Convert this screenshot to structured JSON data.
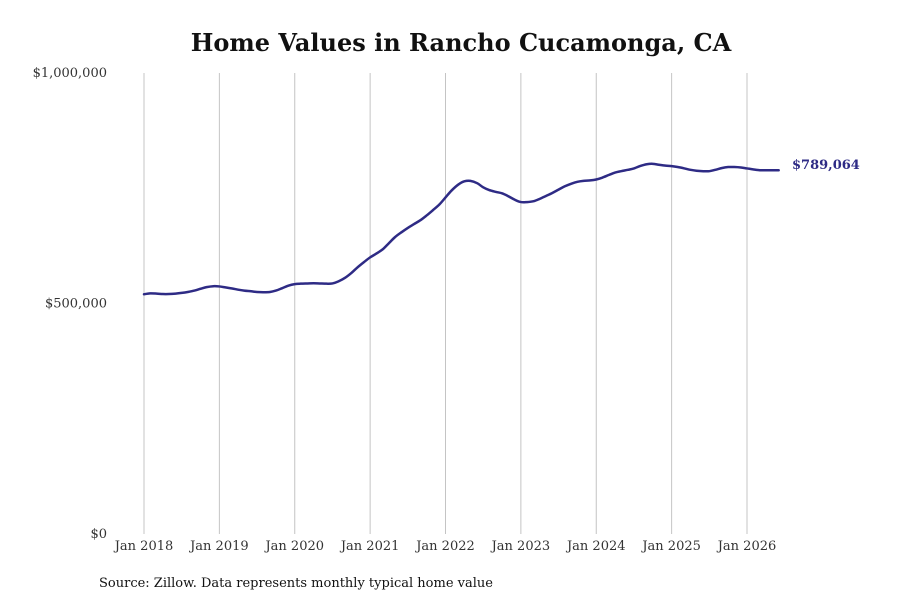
{
  "chart_data": {
    "type": "line",
    "title": "Home Values in Rancho Cucamonga, CA",
    "source": "Source: Zillow. Data represents monthly typical home value",
    "x_unit": "year",
    "x_range": [
      2017.9,
      2026.75
    ],
    "ylim": [
      0,
      1000000
    ],
    "y_ticks": [
      {
        "value": 0,
        "label": "$0"
      },
      {
        "value": 500000,
        "label": "$500,000"
      },
      {
        "value": 1000000,
        "label": "$1,000,000"
      }
    ],
    "x_ticks": [
      {
        "value": 2018,
        "label": "Jan 2018"
      },
      {
        "value": 2019,
        "label": "Jan 2019"
      },
      {
        "value": 2020,
        "label": "Jan 2020"
      },
      {
        "value": 2021,
        "label": "Jan 2021"
      },
      {
        "value": 2022,
        "label": "Jan 2022"
      },
      {
        "value": 2023,
        "label": "Jan 2023"
      },
      {
        "value": 2024,
        "label": "Jan 2024"
      },
      {
        "value": 2025,
        "label": "Jan 2025"
      },
      {
        "value": 2026,
        "label": "Jan 2026"
      }
    ],
    "grid": {
      "vertical": true,
      "horizontal": false
    },
    "color": "#2e2b85",
    "end_label": "$789,064",
    "series": [
      {
        "color": "#2e2b85",
        "x": [
          2018.0,
          2018.08,
          2018.17,
          2018.25,
          2018.33,
          2018.42,
          2018.5,
          2018.58,
          2018.67,
          2018.75,
          2018.83,
          2018.92,
          2019.0,
          2019.08,
          2019.17,
          2019.25,
          2019.33,
          2019.42,
          2019.5,
          2019.58,
          2019.67,
          2019.75,
          2019.83,
          2019.92,
          2020.0,
          2020.08,
          2020.17,
          2020.25,
          2020.33,
          2020.42,
          2020.5,
          2020.58,
          2020.67,
          2020.75,
          2020.83,
          2020.92,
          2021.0,
          2021.08,
          2021.17,
          2021.25,
          2021.33,
          2021.42,
          2021.5,
          2021.58,
          2021.67,
          2021.75,
          2021.83,
          2021.92,
          2022.0,
          2022.08,
          2022.17,
          2022.25,
          2022.33,
          2022.42,
          2022.5,
          2022.58,
          2022.67,
          2022.75,
          2022.83,
          2022.92,
          2023.0,
          2023.08,
          2023.17,
          2023.25,
          2023.33,
          2023.42,
          2023.5,
          2023.58,
          2023.67,
          2023.75,
          2023.83,
          2023.92,
          2024.0,
          2024.08,
          2024.17,
          2024.25,
          2024.33,
          2024.42,
          2024.5,
          2024.58,
          2024.67,
          2024.75,
          2024.83,
          2024.92,
          2025.0,
          2025.08,
          2025.17,
          2025.25,
          2025.33,
          2025.42,
          2025.5,
          2025.58,
          2025.67,
          2025.75,
          2025.83,
          2025.92,
          2026.0,
          2026.08,
          2026.17,
          2026.25,
          2026.33,
          2026.42
        ],
        "y": [
          520000,
          522000,
          521500,
          520500,
          520500,
          521500,
          523000,
          525000,
          528000,
          532000,
          535500,
          537500,
          537000,
          535000,
          532500,
          530000,
          528000,
          526500,
          525000,
          524500,
          525000,
          528000,
          533000,
          539000,
          542000,
          543000,
          543500,
          544000,
          543500,
          543000,
          543500,
          548000,
          556000,
          566000,
          578000,
          590000,
          600000,
          608000,
          618000,
          631000,
          644000,
          655000,
          664000,
          672000,
          681000,
          691000,
          702000,
          715000,
          730000,
          745000,
          758000,
          765000,
          766000,
          761000,
          752000,
          746000,
          742000,
          739000,
          733000,
          725000,
          720000,
          720000,
          722000,
          727000,
          733000,
          740000,
          747000,
          754000,
          760000,
          764000,
          766000,
          767000,
          769000,
          773000,
          779000,
          784000,
          787000,
          790000,
          793000,
          798000,
          802000,
          803000,
          801000,
          799000,
          798000,
          796000,
          793000,
          790000,
          788000,
          787000,
          787000,
          790000,
          794000,
          796000,
          796000,
          795000,
          793000,
          791000,
          789064,
          789064,
          789064,
          789064
        ]
      }
    ]
  }
}
